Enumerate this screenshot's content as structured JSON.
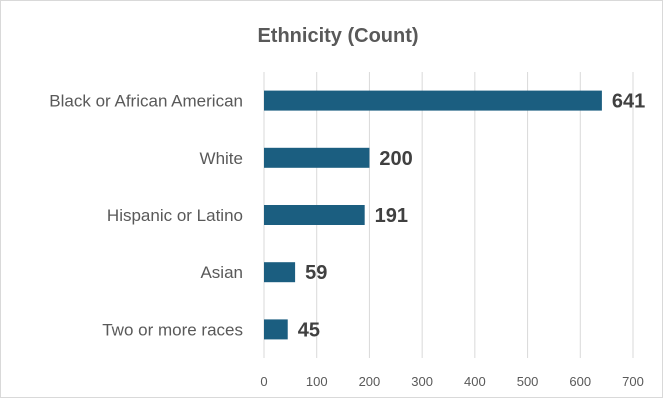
{
  "chart_data": {
    "type": "bar",
    "orientation": "horizontal",
    "title": "Ethnicity (Count)",
    "xlabel": "",
    "ylabel": "",
    "categories": [
      "Black or African American",
      "White",
      "Hispanic or Latino",
      "Asian",
      "Two or more races"
    ],
    "values": [
      641,
      200,
      191,
      59,
      45
    ],
    "data_labels": [
      "641",
      "200",
      "191",
      "59",
      "45"
    ],
    "xlim": [
      0,
      700
    ],
    "ticks": [
      0,
      100,
      200,
      300,
      400,
      500,
      600,
      700
    ],
    "tick_labels": [
      "0",
      "100",
      "200",
      "300",
      "400",
      "500",
      "600",
      "700"
    ],
    "grid": "vertical",
    "legend": "none",
    "bar_color": "#1b5e80"
  }
}
